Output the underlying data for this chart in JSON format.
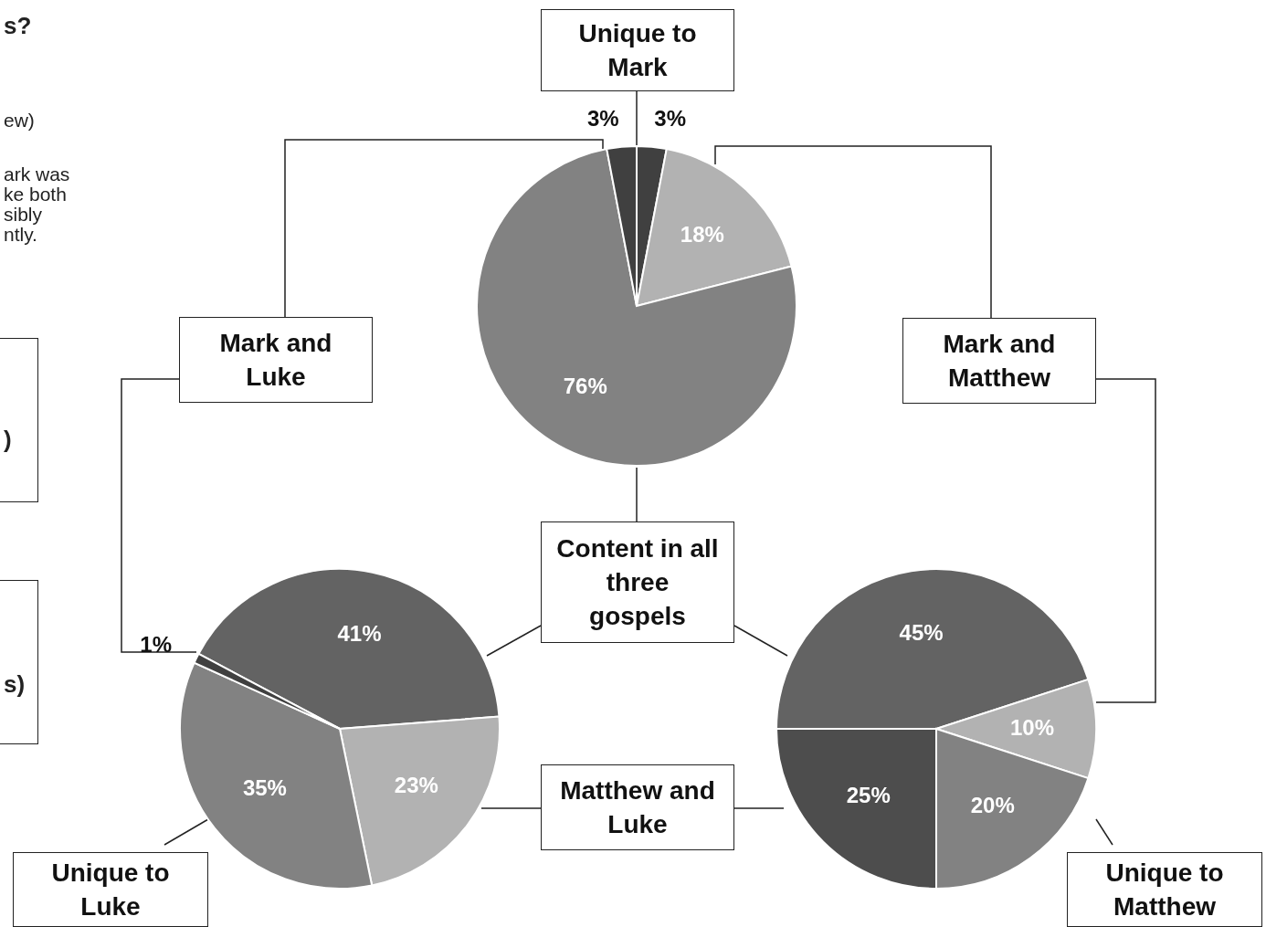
{
  "chart_data": [
    {
      "type": "pie",
      "title": "s?",
      "annotations": [
        "ew)",
        "ark was\nke both\nsibly\nntly.",
        ")",
        "s)"
      ],
      "categories": [
        "Unique to Mark",
        "Mark and Matthew",
        "Content in all three gospels",
        "Mark and Luke"
      ],
      "values": [
        3,
        18,
        76,
        3
      ],
      "colors": [
        "#404040",
        "#b2b2b2",
        "#828282",
        "#404040"
      ],
      "value_labels": [
        "3%",
        "18%",
        "76%",
        "3%"
      ]
    },
    {
      "type": "pie",
      "categories": [
        null,
        "Matthew and Luke",
        "Unique to Luke",
        null
      ],
      "values": [
        41,
        23,
        35,
        1
      ],
      "colors": [
        "#636363",
        "#b2b2b2",
        "#828282",
        "#404040"
      ],
      "value_labels": [
        "41%",
        "23%",
        "35%",
        "1%"
      ]
    },
    {
      "type": "pie",
      "categories": [
        null,
        null,
        "Unique to Matthew",
        null
      ],
      "values": [
        45,
        10,
        20,
        25
      ],
      "colors": [
        "#636363",
        "#b2b2b2",
        "#828282",
        "#4d4d4d"
      ],
      "value_labels": [
        "45%",
        "10%",
        "20%",
        "25%"
      ]
    }
  ]
}
